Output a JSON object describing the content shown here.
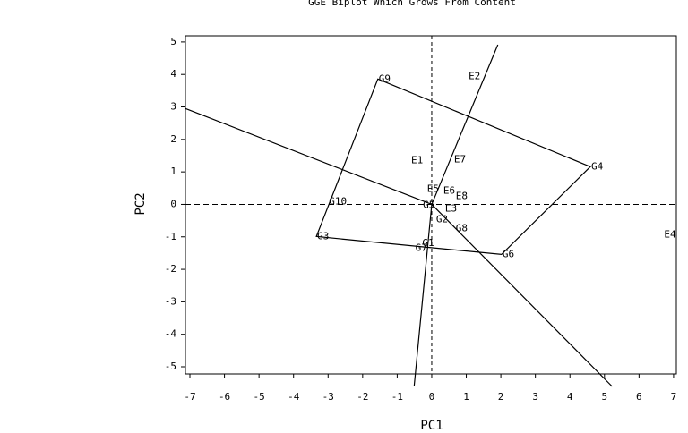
{
  "chart_data": {
    "type": "scatter",
    "title": "GGE Biplot Which Grows From Content",
    "x_label": "PC1",
    "y_label": "PC2",
    "labels": [
      "G9",
      "G4",
      "G6",
      "G3",
      "G10",
      "G5",
      "G2",
      "G8",
      "G7",
      "G1",
      "E2",
      "E1",
      "E7",
      "E5",
      "E6",
      "E8",
      "E3",
      "E4"
    ],
    "x": [
      -1.56,
      4.59,
      2.02,
      -3.34,
      -3.0,
      -0.28,
      0.1,
      0.67,
      -0.5,
      -0.3,
      1.04,
      -0.62,
      0.62,
      -0.16,
      0.31,
      0.67,
      0.36,
      6.7
    ],
    "y": [
      3.86,
      1.16,
      -1.54,
      -0.99,
      0.08,
      -0.03,
      -0.47,
      -0.74,
      -1.35,
      -1.2,
      3.94,
      1.35,
      1.38,
      0.47,
      0.41,
      0.25,
      -0.14,
      -0.94
    ],
    "xlim": [
      -7.13,
      7.08
    ],
    "ylim": [
      -5.22,
      5.19
    ],
    "xticks": [
      -7,
      -6,
      -5,
      -4,
      -3,
      -2,
      -1,
      0,
      1,
      2,
      3,
      4,
      5,
      6,
      7
    ],
    "yticks": [
      -5,
      -4,
      -3,
      -2,
      -1,
      0,
      1,
      2,
      3,
      4,
      5
    ]
  }
}
